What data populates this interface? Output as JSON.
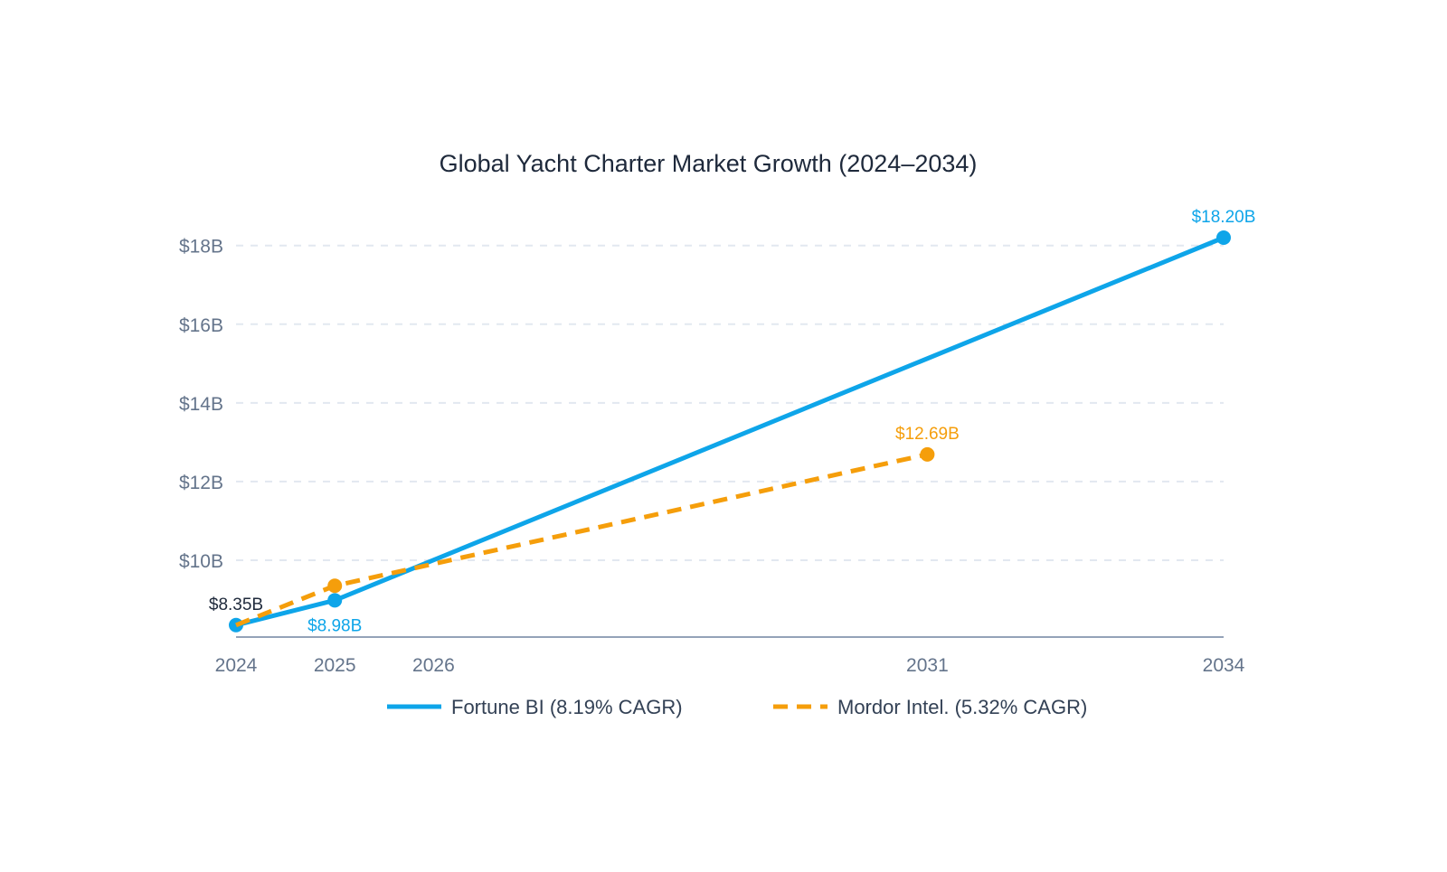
{
  "chart_data": {
    "type": "line",
    "title": "Global Yacht Charter Market Growth (2024–2034)",
    "xlabel": "",
    "ylabel": "",
    "x_ticks": [
      2024,
      2025,
      2026,
      2031,
      2034
    ],
    "x_tick_labels": [
      "2024",
      "2025",
      "2026",
      "2031",
      "2034"
    ],
    "xlim": [
      2024,
      2034
    ],
    "y_ticks": [
      10,
      12,
      14,
      16,
      18
    ],
    "y_tick_labels": [
      "$10B",
      "$12B",
      "$14B",
      "$16B",
      "$18B"
    ],
    "ylim": [
      8,
      18.2
    ],
    "grid": "horizontal dashed",
    "legend_position": "bottom",
    "series": [
      {
        "name": "Fortune BI (8.19% CAGR)",
        "color": "#0ea5e9",
        "style": "solid",
        "points": [
          {
            "x": 2024,
            "y": 8.35,
            "label": "$8.35B",
            "label_color": "#1e293b",
            "label_pos": "above"
          },
          {
            "x": 2025,
            "y": 8.98,
            "label": "$8.98B",
            "label_color": "#0ea5e9",
            "label_pos": "below"
          },
          {
            "x": 2034,
            "y": 18.2,
            "label": "$18.20B",
            "label_color": "#0ea5e9",
            "label_pos": "above"
          }
        ]
      },
      {
        "name": "Mordor Intel. (5.32% CAGR)",
        "color": "#f59e0b",
        "style": "dashed",
        "points": [
          {
            "x": 2024,
            "y": 8.35,
            "label": ""
          },
          {
            "x": 2025,
            "y": 9.35,
            "label": ""
          },
          {
            "x": 2031,
            "y": 12.69,
            "label": "$12.69B",
            "label_color": "#f59e0b",
            "label_pos": "above"
          }
        ]
      }
    ]
  }
}
